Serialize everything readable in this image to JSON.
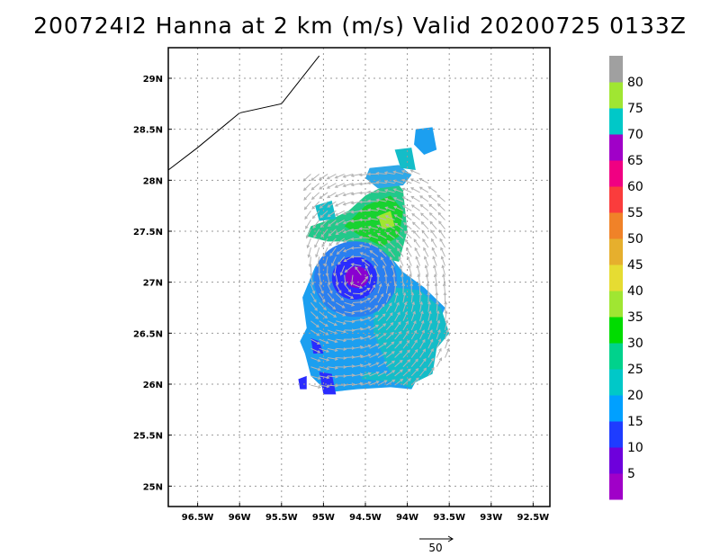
{
  "title": "200724I2 Hanna at 2 km (m/s) Valid 20200725 0133Z",
  "chart_data": {
    "type": "heatmap",
    "title": "200724I2 Hanna at 2 km (m/s) Valid 20200725 0133Z",
    "lon_range": [
      -96.85,
      -92.3
    ],
    "lat_range": [
      24.8,
      29.3
    ],
    "x_ticks": [
      {
        "value": -96.5,
        "label": "96.5W"
      },
      {
        "value": -96.0,
        "label": "96W"
      },
      {
        "value": -95.5,
        "label": "95.5W"
      },
      {
        "value": -95.0,
        "label": "95W"
      },
      {
        "value": -94.5,
        "label": "94.5W"
      },
      {
        "value": -94.0,
        "label": "94W"
      },
      {
        "value": -93.5,
        "label": "93.5W"
      },
      {
        "value": -93.0,
        "label": "93W"
      },
      {
        "value": -92.5,
        "label": "92.5W"
      }
    ],
    "y_ticks": [
      {
        "value": 25.0,
        "label": "25N"
      },
      {
        "value": 25.5,
        "label": "25.5N"
      },
      {
        "value": 26.0,
        "label": "26N"
      },
      {
        "value": 26.5,
        "label": "26.5N"
      },
      {
        "value": 27.0,
        "label": "27N"
      },
      {
        "value": 27.5,
        "label": "27.5N"
      },
      {
        "value": 28.0,
        "label": "28N"
      },
      {
        "value": 28.5,
        "label": "28.5N"
      },
      {
        "value": 29.0,
        "label": "29N"
      }
    ],
    "grid": true,
    "colorbar": {
      "placement": "right",
      "labels": [
        "5",
        "10",
        "15",
        "20",
        "25",
        "30",
        "35",
        "40",
        "45",
        "50",
        "55",
        "60",
        "65",
        "70",
        "75",
        "80"
      ],
      "colors": [
        "#a000c8",
        "#6e00dc",
        "#1e3cff",
        "#00a0ff",
        "#00c8c8",
        "#00d28c",
        "#00dc00",
        "#a0e632",
        "#e6dc32",
        "#e6af2d",
        "#f08228",
        "#fa3c3c",
        "#f00082",
        "#a000c8",
        "#00c8c8",
        "#a0e632",
        "#a0a0a0"
      ]
    },
    "coastline": [
      [
        -96.85,
        28.1
      ],
      [
        -96.5,
        28.32
      ],
      [
        -96.0,
        28.66
      ],
      [
        -95.5,
        28.75
      ],
      [
        -95.05,
        29.22
      ]
    ],
    "center": {
      "lon": -94.6,
      "lat": 27.05
    },
    "reference_vector": {
      "label": "50",
      "magnitude": 50
    }
  }
}
